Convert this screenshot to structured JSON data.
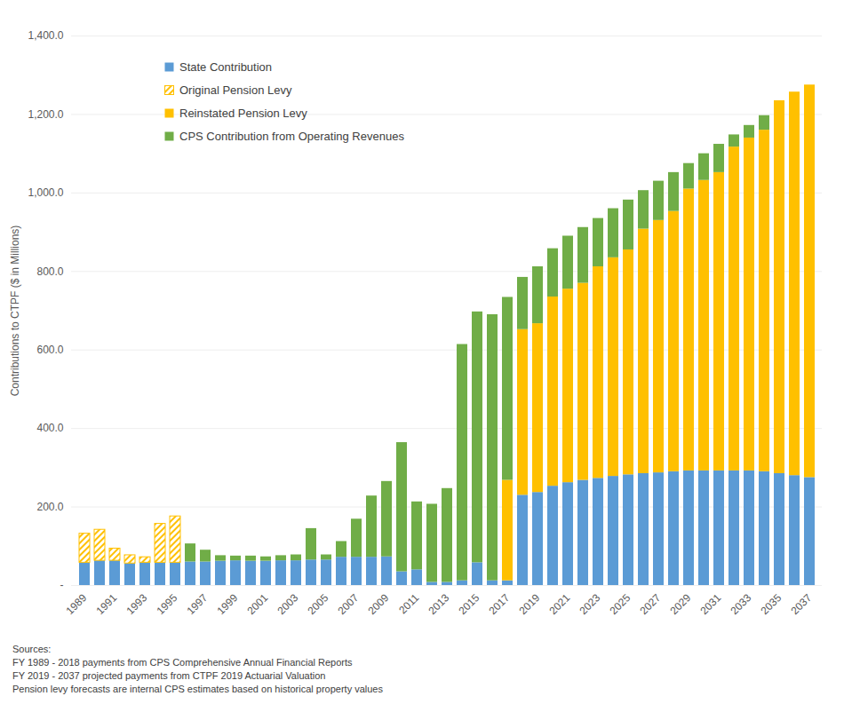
{
  "chart_data": {
    "type": "bar",
    "stacked": true,
    "y_label": "Contributions to CTPF ($ in Millions)",
    "categories": [
      "1989",
      null,
      "1991",
      null,
      "1993",
      null,
      "1995",
      null,
      "1997",
      null,
      "1999",
      null,
      "2001",
      null,
      "2003",
      null,
      "2005",
      null,
      "2007",
      null,
      "2009",
      null,
      "2011",
      null,
      "2013",
      null,
      "2015",
      null,
      "2017",
      null,
      "2019",
      null,
      "2021",
      null,
      "2023",
      null,
      "2025",
      null,
      "2027",
      null,
      "2029",
      null,
      "2031",
      null,
      "2033",
      null,
      "2035",
      null,
      "2037"
    ],
    "series": [
      {
        "name": "State Contribution",
        "color": "#5b9bd5",
        "values": [
          58,
          63,
          63,
          56,
          58,
          58,
          58,
          60,
          60,
          62,
          63,
          62,
          62,
          63,
          63,
          65,
          65,
          72,
          72,
          72,
          73,
          35,
          40,
          8,
          8,
          12,
          58,
          12,
          12,
          230,
          237,
          253,
          262,
          268,
          273,
          278,
          282,
          285,
          287,
          290,
          292,
          292,
          292,
          292,
          292,
          290,
          285,
          280,
          275
        ]
      },
      {
        "name": "Original Pension Levy",
        "color": "#ffc000",
        "line_style": "hatched",
        "values": [
          74,
          79,
          31,
          21,
          14,
          99,
          118,
          null,
          null,
          null,
          null,
          null,
          null,
          null,
          null,
          null,
          null,
          null,
          null,
          null,
          null,
          null,
          null,
          null,
          null,
          null,
          null,
          null,
          null,
          null,
          null,
          null,
          null,
          null,
          null,
          null,
          null,
          null,
          null,
          null,
          null,
          null,
          null,
          null,
          null,
          null,
          null,
          null,
          null
        ]
      },
      {
        "name": "Reinstated Pension Levy",
        "color": "#ffc000",
        "values": [
          null,
          null,
          null,
          null,
          null,
          null,
          null,
          null,
          null,
          null,
          null,
          null,
          null,
          null,
          null,
          null,
          null,
          null,
          null,
          null,
          null,
          null,
          null,
          null,
          null,
          null,
          null,
          null,
          256,
          422,
          430,
          482,
          493,
          502,
          539,
          557,
          573,
          623,
          643,
          663,
          718,
          740,
          760,
          825,
          848,
          870,
          950,
          977,
          1000
        ]
      },
      {
        "name": "CPS Contribution from Operating Revenues",
        "color": "#70ad47",
        "values": [
          null,
          null,
          null,
          null,
          null,
          null,
          null,
          46,
          30,
          14,
          12,
          13,
          11,
          13,
          15,
          80,
          13,
          40,
          97,
          156,
          192,
          329,
          173,
          199,
          239,
          602,
          639,
          678,
          466,
          133,
          145,
          123,
          135,
          142,
          123,
          125,
          127,
          98,
          100,
          99,
          65,
          68,
          72,
          31,
          32,
          37,
          null,
          null,
          null
        ]
      }
    ],
    "ylim": [
      0,
      1400
    ],
    "yticks": [
      {
        "value": 0,
        "label": "-"
      },
      {
        "value": 200,
        "label": "200.0"
      },
      {
        "value": 400,
        "label": "400.0"
      },
      {
        "value": 600,
        "label": "600.0"
      },
      {
        "value": 800,
        "label": "800.0"
      },
      {
        "value": 1000,
        "label": "1,000.0"
      },
      {
        "value": 1200,
        "label": "1,200.0"
      },
      {
        "value": 1400,
        "label": "1,400.0"
      }
    ],
    "grid": true,
    "legend": "top-left",
    "caption": [
      "Sources:",
      "FY 1989 - 2018 payments from CPS Comprehensive Annual Financial Reports",
      "FY 2019 - 2037 projected payments from CTPF 2019 Actuarial Valuation",
      "Pension levy forecasts are internal CPS estimates based on historical property values"
    ]
  }
}
